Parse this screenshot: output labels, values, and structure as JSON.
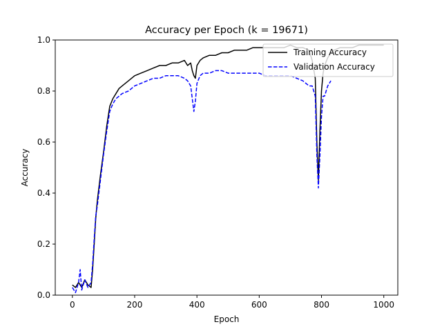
{
  "chart_data": {
    "type": "line",
    "title": "Accuracy per Epoch (k = 19671)",
    "xlabel": "Epoch",
    "ylabel": "Accuracy",
    "xlim": [
      -55,
      1045
    ],
    "ylim": [
      0,
      1.0
    ],
    "xticks": [
      0,
      200,
      400,
      600,
      800,
      1000
    ],
    "yticks": [
      0.0,
      0.2,
      0.4,
      0.6,
      0.8,
      1.0
    ],
    "xtick_labels": [
      "0",
      "200",
      "400",
      "600",
      "800",
      "1000"
    ],
    "ytick_labels": [
      "0.0",
      "0.2",
      "0.4",
      "0.6",
      "0.8",
      "1.0"
    ],
    "grid": false,
    "legend_position": "upper right",
    "series": [
      {
        "name": "Training Accuracy",
        "color": "#000000",
        "style": "solid",
        "x": [
          0,
          10,
          20,
          30,
          40,
          50,
          60,
          65,
          70,
          75,
          80,
          90,
          100,
          110,
          120,
          130,
          140,
          150,
          160,
          180,
          200,
          220,
          240,
          260,
          280,
          300,
          320,
          340,
          360,
          370,
          380,
          385,
          390,
          395,
          400,
          410,
          420,
          440,
          460,
          480,
          500,
          520,
          540,
          560,
          580,
          600,
          620,
          640,
          660,
          680,
          700,
          720,
          740,
          760,
          770,
          780,
          785,
          790,
          795,
          800,
          805,
          810,
          820,
          830,
          840,
          860,
          880,
          900,
          920,
          940,
          960,
          980,
          1000
        ],
        "y": [
          0.04,
          0.03,
          0.05,
          0.03,
          0.06,
          0.04,
          0.03,
          0.1,
          0.2,
          0.3,
          0.37,
          0.47,
          0.56,
          0.66,
          0.74,
          0.77,
          0.79,
          0.81,
          0.82,
          0.84,
          0.86,
          0.87,
          0.88,
          0.89,
          0.9,
          0.9,
          0.91,
          0.91,
          0.92,
          0.9,
          0.91,
          0.88,
          0.86,
          0.85,
          0.9,
          0.92,
          0.93,
          0.94,
          0.94,
          0.95,
          0.95,
          0.96,
          0.96,
          0.96,
          0.97,
          0.97,
          0.97,
          0.97,
          0.97,
          0.97,
          0.98,
          0.97,
          0.97,
          0.96,
          0.92,
          0.85,
          0.6,
          0.45,
          0.65,
          0.8,
          0.87,
          0.9,
          0.93,
          0.95,
          0.96,
          0.97,
          0.97,
          0.97,
          0.98,
          0.98,
          0.98,
          0.98,
          0.98
        ]
      },
      {
        "name": "Validation Accuracy",
        "color": "#0000ff",
        "style": "dashed",
        "x": [
          0,
          10,
          20,
          25,
          30,
          40,
          50,
          60,
          65,
          70,
          75,
          80,
          90,
          100,
          110,
          120,
          130,
          140,
          150,
          160,
          180,
          200,
          220,
          240,
          260,
          280,
          300,
          320,
          340,
          360,
          370,
          380,
          385,
          390,
          395,
          400,
          410,
          420,
          440,
          460,
          480,
          500,
          520,
          540,
          560,
          580,
          600,
          620,
          640,
          660,
          680,
          700,
          720,
          740,
          760,
          770,
          780,
          785,
          790,
          795,
          800,
          805,
          810,
          820,
          830
        ],
        "y": [
          0.03,
          0.01,
          0.05,
          0.1,
          0.02,
          0.06,
          0.03,
          0.05,
          0.12,
          0.22,
          0.31,
          0.35,
          0.45,
          0.55,
          0.64,
          0.72,
          0.75,
          0.77,
          0.78,
          0.79,
          0.8,
          0.82,
          0.83,
          0.84,
          0.85,
          0.85,
          0.86,
          0.86,
          0.86,
          0.85,
          0.84,
          0.82,
          0.77,
          0.72,
          0.76,
          0.83,
          0.86,
          0.87,
          0.87,
          0.88,
          0.88,
          0.87,
          0.87,
          0.87,
          0.87,
          0.87,
          0.87,
          0.86,
          0.86,
          0.86,
          0.86,
          0.86,
          0.85,
          0.84,
          0.82,
          0.82,
          0.78,
          0.55,
          0.42,
          0.55,
          0.7,
          0.78,
          0.78,
          0.82,
          0.84
        ]
      }
    ]
  }
}
